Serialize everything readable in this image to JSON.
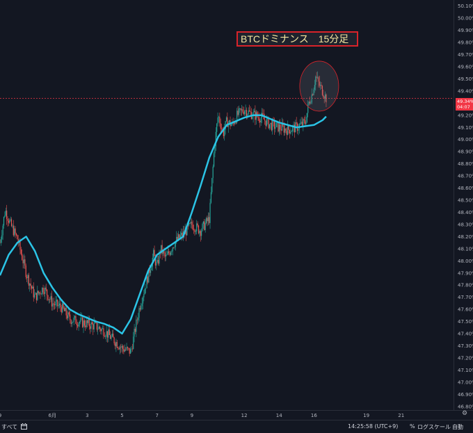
{
  "annotation": {
    "title": "BTCドミナンス　15分足"
  },
  "price_tag": {
    "value": "49.34%",
    "countdown": "04:07"
  },
  "bottom_bar": {
    "range_label": "すべて",
    "time": "14:25:58 (UTC+9)",
    "percent_label": "%",
    "log_label": "ログスケール",
    "auto_label": "自動"
  },
  "icons": {
    "calendar": "calendar-icon",
    "settings": "gear-icon"
  },
  "colors": {
    "background": "#131722",
    "up_candle": "#26a69a",
    "down_candle": "#ef5350",
    "moving_average": "#2bc4e6",
    "annotation_border": "#d8232a",
    "annotation_text": "#f5e6a0",
    "price_line": "#f23645"
  },
  "chart_data": {
    "type": "line",
    "title": "BTCドミナンス　15分足",
    "y_unit": "%",
    "ylim": [
      46.77,
      50.15
    ],
    "y_ticks": [
      "50.10%",
      "50.00%",
      "49.90%",
      "49.80%",
      "49.70%",
      "49.60%",
      "49.50%",
      "49.40%",
      "49.30%",
      "49.20%",
      "49.10%",
      "49.00%",
      "48.90%",
      "48.80%",
      "48.70%",
      "48.60%",
      "48.50%",
      "48.40%",
      "48.30%",
      "48.20%",
      "48.10%",
      "48.00%",
      "47.90%",
      "47.80%",
      "47.70%",
      "47.60%",
      "47.50%",
      "47.40%",
      "47.30%",
      "47.20%",
      "47.10%",
      "47.00%",
      "46.90%",
      "46.80%"
    ],
    "x_ticks": [
      "9",
      "6月",
      "3",
      "5",
      "7",
      "9",
      "12",
      "14",
      "16",
      "19",
      "21"
    ],
    "xlim": [
      0,
      26
    ],
    "x_tick_positions": [
      0,
      3,
      5,
      7,
      9,
      11,
      14,
      16,
      18,
      21,
      23
    ],
    "current_price": 49.34,
    "series": [
      {
        "name": "",
        "kind": "price",
        "x": [
          0,
          0.3,
          0.6,
          1.0,
          1.5,
          2.0,
          2.5,
          3.0,
          3.5,
          4.0,
          4.5,
          5.0,
          5.5,
          6.0,
          6.5,
          7.0,
          7.5,
          8.0,
          8.5,
          8.8,
          9.0,
          9.2,
          9.5,
          10.0,
          10.5,
          11.0,
          11.5,
          12.0,
          12.3,
          12.5,
          12.8,
          13.0,
          13.3,
          13.6,
          14.0,
          14.3,
          14.6,
          15.0,
          15.5,
          16.0,
          16.5,
          17.0,
          17.5,
          17.7,
          17.9,
          18.1,
          18.3,
          18.5,
          18.7
        ],
        "y": [
          48.15,
          48.42,
          48.3,
          48.18,
          47.9,
          47.7,
          47.78,
          47.65,
          47.62,
          47.52,
          47.5,
          47.48,
          47.46,
          47.42,
          47.35,
          47.28,
          47.25,
          47.62,
          47.88,
          48.05,
          47.95,
          48.1,
          48.02,
          48.15,
          48.22,
          48.3,
          48.25,
          48.35,
          48.95,
          49.2,
          49.05,
          49.15,
          49.12,
          49.2,
          49.25,
          49.22,
          49.2,
          49.18,
          49.12,
          49.1,
          49.08,
          49.1,
          49.14,
          49.3,
          49.38,
          49.52,
          49.45,
          49.4,
          49.34
        ]
      },
      {
        "name": "",
        "kind": "moving_average",
        "x": [
          0,
          0.5,
          1.0,
          1.5,
          2.0,
          2.5,
          3.0,
          3.5,
          4.0,
          4.5,
          5.0,
          5.5,
          6.0,
          6.5,
          7.0,
          7.5,
          8.0,
          8.5,
          9.0,
          9.5,
          10.0,
          10.5,
          11.0,
          11.5,
          12.0,
          12.5,
          13.0,
          13.5,
          14.0,
          14.5,
          15.0,
          15.5,
          16.0,
          16.5,
          17.0,
          17.5,
          18.0,
          18.5,
          18.7
        ],
        "y": [
          47.88,
          48.05,
          48.15,
          48.2,
          48.08,
          47.9,
          47.78,
          47.68,
          47.6,
          47.56,
          47.53,
          47.5,
          47.48,
          47.45,
          47.4,
          47.52,
          47.72,
          47.92,
          48.05,
          48.1,
          48.15,
          48.2,
          48.4,
          48.62,
          48.85,
          49.02,
          49.12,
          49.15,
          49.18,
          49.2,
          49.2,
          49.17,
          49.14,
          49.12,
          49.1,
          49.11,
          49.12,
          49.16,
          49.19
        ]
      }
    ],
    "highlight": {
      "x": 18.3,
      "y": 49.44
    }
  }
}
